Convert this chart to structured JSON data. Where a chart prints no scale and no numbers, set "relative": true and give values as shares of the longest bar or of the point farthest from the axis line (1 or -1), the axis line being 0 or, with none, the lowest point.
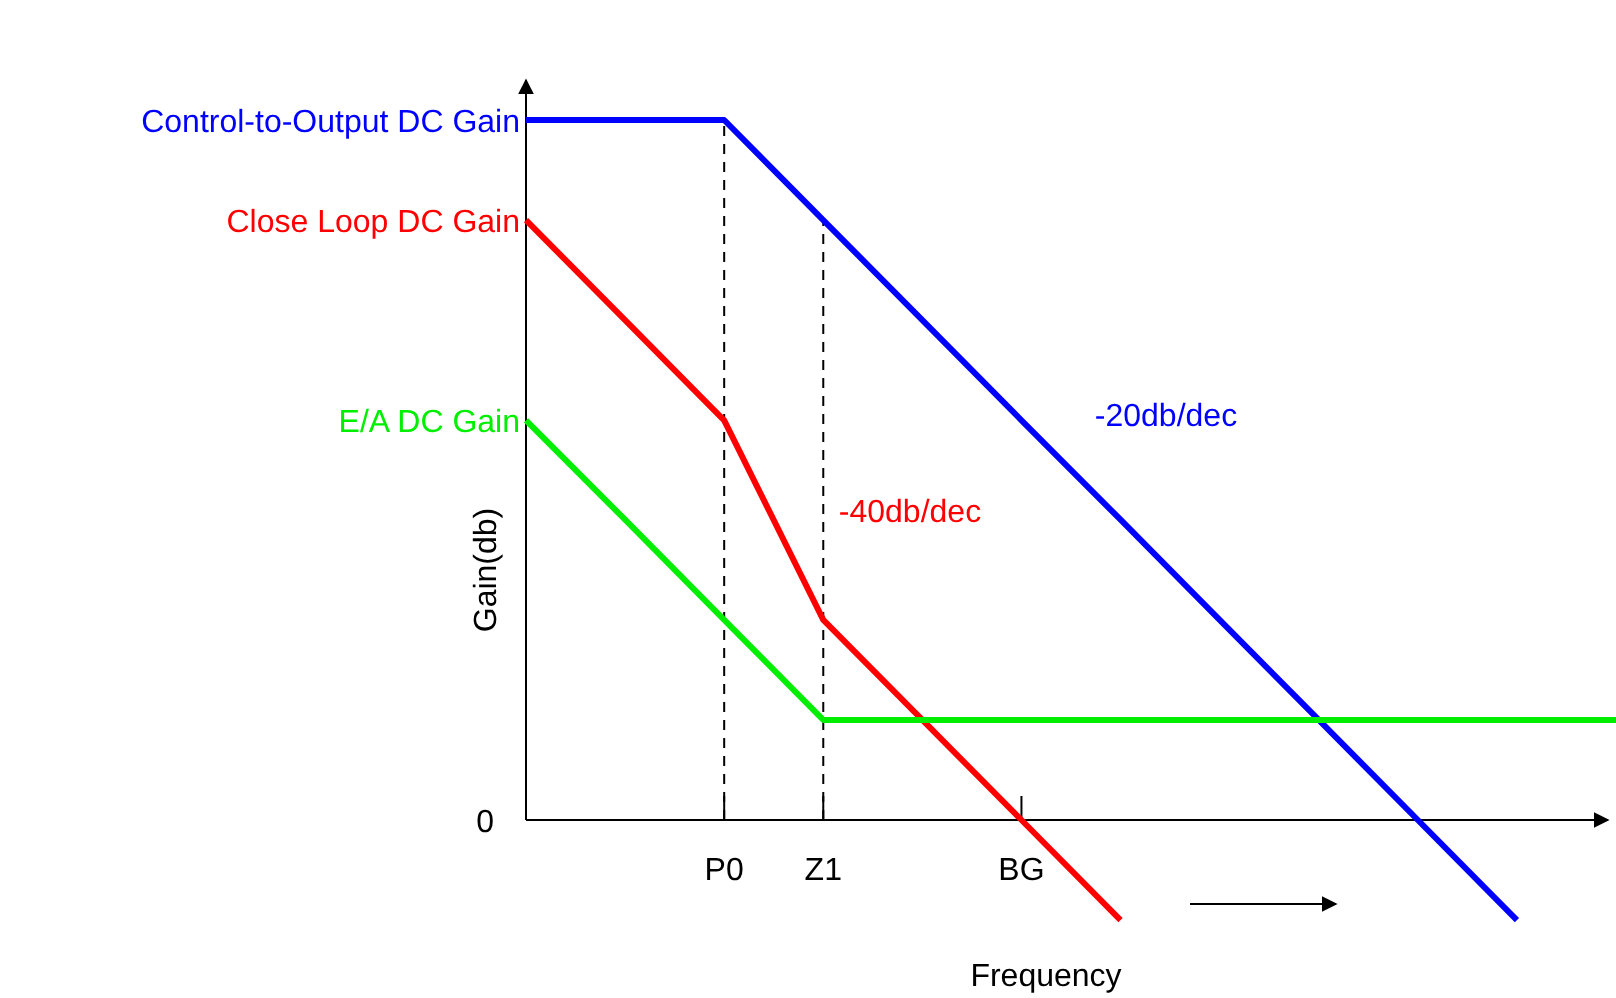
{
  "chart_data": {
    "type": "line",
    "relative": true,
    "xlabel": "Frequency",
    "ylabel": "Gain(db)",
    "categories": [
      null,
      null,
      "P0",
      "Z1",
      null,
      "BG",
      null,
      null,
      null,
      null,
      null,
      null
    ],
    "series": [
      {
        "name": "Control-to-Output DC Gain",
        "color": "#0000ff",
        "values": [
          1,
          1,
          1,
          0.857,
          0.714,
          0.571,
          0.429,
          0.286,
          0.143,
          0,
          -0.143,
          null
        ]
      },
      {
        "name": "Close Loop DC Gain",
        "color": "#ff0000",
        "values": [
          0.857,
          0.714,
          0.571,
          0.286,
          0.143,
          0,
          -0.143,
          null,
          null,
          null,
          null,
          null
        ]
      },
      {
        "name": "E/A DC Gain",
        "color": "#00ee00",
        "values": [
          0.571,
          0.429,
          0.286,
          0.143,
          0.143,
          0.143,
          0.143,
          0.143,
          0.143,
          0.143,
          0.143,
          0.143
        ]
      }
    ],
    "ref_lines": [
      {
        "axis": "x",
        "value": "P0",
        "line_style": "dashed"
      },
      {
        "axis": "x",
        "value": "Z1",
        "line_style": "dashed"
      }
    ],
    "annotations": [
      "0",
      "-20db/dec",
      "-40db/dec"
    ],
    "grid": false,
    "legend": false,
    "marker": "none",
    "line_style": "solid"
  }
}
